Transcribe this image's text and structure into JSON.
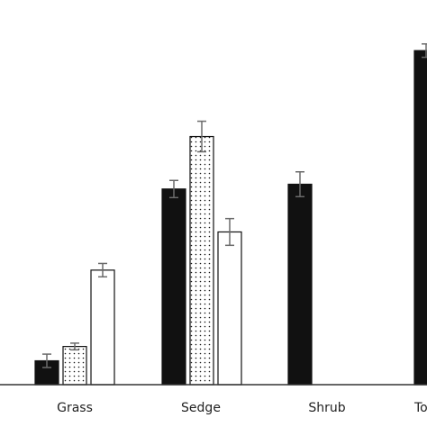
{
  "chart_data": {
    "type": "bar",
    "categories": [
      "Grass",
      "Sedge",
      "Shrub",
      "To"
    ],
    "series": [
      {
        "values": [
          2.5,
          20.5,
          21.0,
          35.0
        ],
        "errors": [
          0.7,
          0.9,
          1.3,
          0.7
        ],
        "fill": "solid"
      },
      {
        "values": [
          4.0,
          26.0,
          null,
          null
        ],
        "errors": [
          0.35,
          1.6,
          null,
          null
        ],
        "fill": "dotted"
      },
      {
        "values": [
          12.0,
          16.0,
          null,
          null
        ],
        "errors": [
          0.7,
          1.4,
          null,
          null
        ],
        "fill": "open"
      }
    ],
    "ylim": [
      0,
      37
    ],
    "grid": false,
    "legend": "none",
    "colors": {
      "bar_fill": "#111111",
      "outline": "#111111",
      "error_bar": "#6b6b6b",
      "axis": "#333333",
      "background": "#ffffff"
    }
  }
}
